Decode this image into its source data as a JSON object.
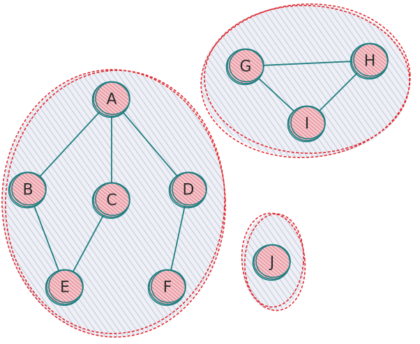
{
  "colors": {
    "outline": "#e3262c",
    "edge": "#1f7e80",
    "node_fill": "#e8a0a8",
    "group_fill": "#cfd5e3"
  },
  "nodes": [
    {
      "id": "A",
      "label": "A"
    },
    {
      "id": "B",
      "label": "B"
    },
    {
      "id": "C",
      "label": "C"
    },
    {
      "id": "D",
      "label": "D"
    },
    {
      "id": "E",
      "label": "E"
    },
    {
      "id": "F",
      "label": "F"
    },
    {
      "id": "G",
      "label": "G"
    },
    {
      "id": "H",
      "label": "H"
    },
    {
      "id": "I",
      "label": "I"
    },
    {
      "id": "J",
      "label": "J"
    }
  ],
  "edges": [
    [
      "A",
      "B"
    ],
    [
      "A",
      "C"
    ],
    [
      "A",
      "D"
    ],
    [
      "B",
      "E"
    ],
    [
      "C",
      "E"
    ],
    [
      "D",
      "F"
    ],
    [
      "G",
      "H"
    ],
    [
      "G",
      "I"
    ],
    [
      "H",
      "I"
    ]
  ],
  "groups": [
    {
      "id": "component-1",
      "members": [
        "A",
        "B",
        "C",
        "D",
        "E",
        "F"
      ]
    },
    {
      "id": "component-2",
      "members": [
        "G",
        "H",
        "I"
      ]
    },
    {
      "id": "component-3",
      "members": [
        "J"
      ]
    }
  ]
}
